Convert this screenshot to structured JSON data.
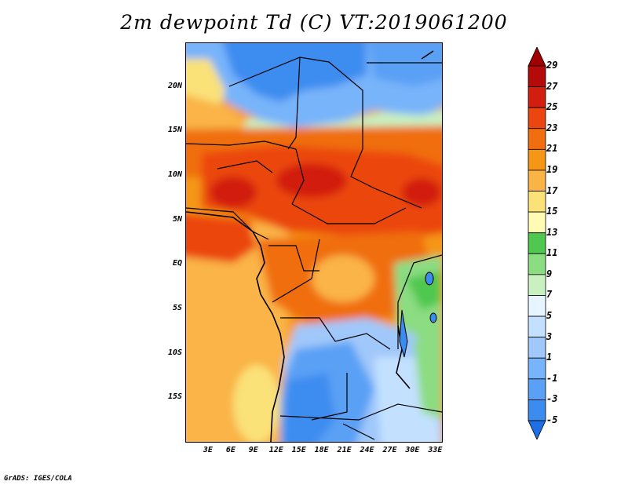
{
  "title": "2m dewpoint Td (C) VT:2019061200",
  "credit": "GrADS: IGES/COLA",
  "map": {
    "lon_range": [
      0,
      34
    ],
    "lat_range": [
      -20,
      25
    ],
    "lat_labels": [
      {
        "lat": 20,
        "label": "20N"
      },
      {
        "lat": 15,
        "label": "15N"
      },
      {
        "lat": 10,
        "label": "10N"
      },
      {
        "lat": 5,
        "label": "5N"
      },
      {
        "lat": 0,
        "label": "EQ"
      },
      {
        "lat": -5,
        "label": "5S"
      },
      {
        "lat": -10,
        "label": "10S"
      },
      {
        "lat": -15,
        "label": "15S"
      }
    ],
    "lon_labels": [
      {
        "lon": 3,
        "label": "3E"
      },
      {
        "lon": 6,
        "label": "6E"
      },
      {
        "lon": 9,
        "label": "9E"
      },
      {
        "lon": 12,
        "label": "12E"
      },
      {
        "lon": 15,
        "label": "15E"
      },
      {
        "lon": 18,
        "label": "18E"
      },
      {
        "lon": 21,
        "label": "21E"
      },
      {
        "lon": 24,
        "label": "24E"
      },
      {
        "lon": 27,
        "label": "27E"
      },
      {
        "lon": 30,
        "label": "30E"
      },
      {
        "lon": 33,
        "label": "33E"
      }
    ]
  },
  "colorbar": {
    "levels": [
      "-5",
      "-3",
      "-1",
      "1",
      "3",
      "5",
      "7",
      "9",
      "11",
      "13",
      "15",
      "17",
      "19",
      "21",
      "23",
      "25",
      "27",
      "29"
    ],
    "colors": [
      "#1e6ee6",
      "#3c8cf0",
      "#5aa0f5",
      "#78b4fa",
      "#a0c8fa",
      "#c3e1ff",
      "#e6f5ff",
      "#c8f0c0",
      "#8cdc82",
      "#50c850",
      "#fffab4",
      "#fae178",
      "#fab446",
      "#f59614",
      "#f06e0f",
      "#eb4610",
      "#d21e0f",
      "#b40a0a",
      "#a00000"
    ]
  }
}
